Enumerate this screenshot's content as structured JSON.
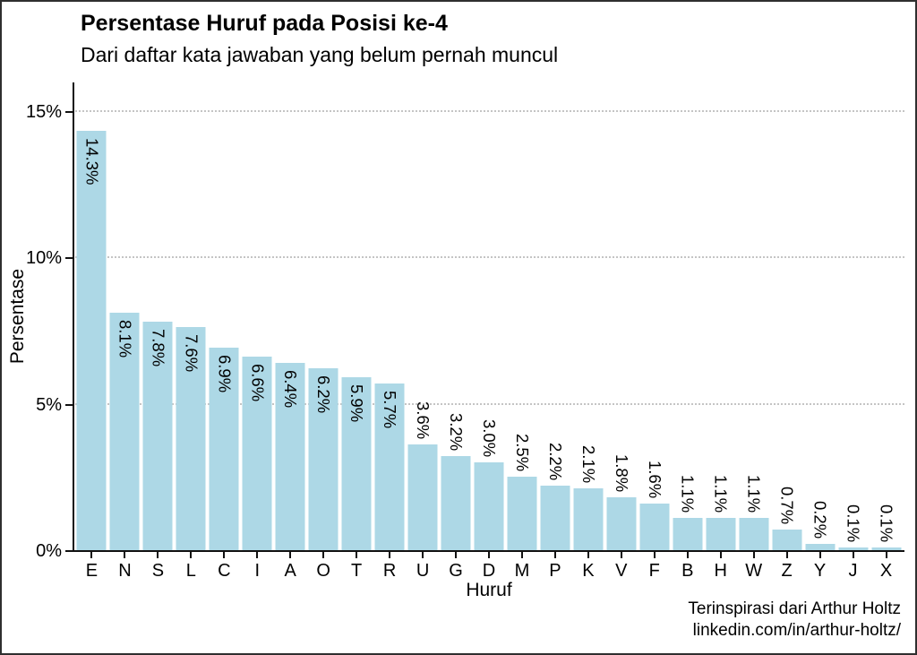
{
  "title": "Persentase Huruf pada Posisi ke-4",
  "subtitle": "Dari daftar kata jawaban yang belum pernah muncul",
  "caption": {
    "line1": "Terinspirasi dari Arthur Holtz",
    "line2": "linkedin.com/in/arthur-holtz/"
  },
  "chart_data": {
    "type": "bar",
    "title": "Persentase Huruf pada Posisi ke-4",
    "subtitle": "Dari daftar kata jawaban yang belum pernah muncul",
    "xlabel": "Huruf",
    "ylabel": "Persentase",
    "categories": [
      "E",
      "N",
      "S",
      "L",
      "C",
      "I",
      "A",
      "O",
      "T",
      "R",
      "U",
      "G",
      "D",
      "M",
      "P",
      "K",
      "V",
      "F",
      "B",
      "H",
      "W",
      "Z",
      "Y",
      "J",
      "X"
    ],
    "values": [
      14.3,
      8.1,
      7.8,
      7.6,
      6.9,
      6.6,
      6.4,
      6.2,
      5.9,
      5.7,
      3.6,
      3.2,
      3.0,
      2.5,
      2.2,
      2.1,
      1.8,
      1.6,
      1.1,
      1.1,
      1.1,
      0.7,
      0.2,
      0.1,
      0.1
    ],
    "bar_labels": [
      "14.3%",
      "8.1%",
      "7.8%",
      "7.6%",
      "6.9%",
      "6.6%",
      "6.4%",
      "6.2%",
      "5.9%",
      "5.7%",
      "3.6%",
      "3.2%",
      "3.0%",
      "2.5%",
      "2.2%",
      "2.1%",
      "1.8%",
      "1.6%",
      "1.1%",
      "1.1%",
      "1.1%",
      "0.7%",
      "0.2%",
      "0.1%",
      "0.1%"
    ],
    "y_ticks": [
      {
        "value": 0,
        "label": "0%"
      },
      {
        "value": 5,
        "label": "5%"
      },
      {
        "value": 10,
        "label": "10%"
      },
      {
        "value": 15,
        "label": "15%"
      }
    ],
    "ylim": [
      0,
      16
    ],
    "grid": {
      "horizontal": true,
      "style": "dotted",
      "at": [
        5,
        10,
        15
      ]
    },
    "legend": "none",
    "colors": {
      "bar_fill": "#ADD8E6",
      "text": "#000000",
      "gridline": "#C4C4C4",
      "axis": "#111111",
      "background": "#FFFFFF",
      "border": "#2F2F2F"
    }
  }
}
